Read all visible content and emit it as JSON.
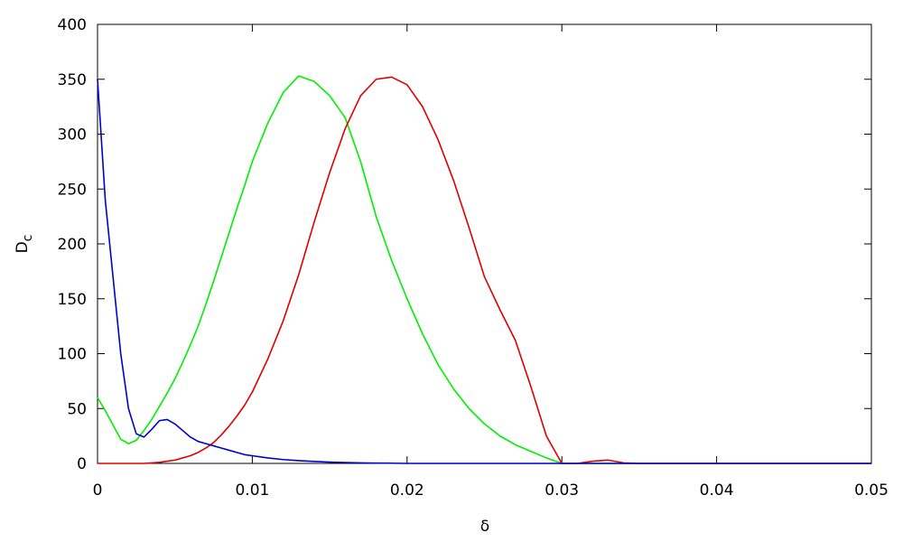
{
  "chart_data": {
    "type": "line",
    "xlabel": "δ",
    "ylabel": "D",
    "ylabel_subscript": "c",
    "x": [
      0,
      0.0005,
      0.001,
      0.0015,
      0.002,
      0.0025,
      0.003,
      0.0035,
      0.004,
      0.0045,
      0.005,
      0.0055,
      0.006,
      0.0065,
      0.007,
      0.0075,
      0.008,
      0.0085,
      0.009,
      0.0095,
      0.01,
      0.011,
      0.012,
      0.013,
      0.014,
      0.015,
      0.016,
      0.017,
      0.018,
      0.019,
      0.02,
      0.021,
      0.022,
      0.023,
      0.024,
      0.025,
      0.026,
      0.027,
      0.028,
      0.029,
      0.03,
      0.031,
      0.032,
      0.033,
      0.034,
      0.035,
      0.036,
      0.037,
      0.038,
      0.039,
      0.04,
      0.041,
      0.042,
      0.043,
      0.044,
      0.045,
      0.046,
      0.047,
      0.048,
      0.049,
      0.05
    ],
    "series": [
      {
        "color": "#00ee00",
        "values": [
          60,
          48,
          35,
          22,
          18,
          21,
          30,
          40,
          52,
          64,
          77,
          92,
          108,
          125,
          145,
          166,
          188,
          210,
          232,
          253,
          275,
          310,
          338,
          353,
          348,
          335,
          315,
          275,
          225,
          185,
          150,
          118,
          90,
          68,
          50,
          36,
          25,
          17,
          11,
          5,
          0,
          0,
          0,
          0,
          0,
          0,
          0,
          0,
          0,
          0,
          0,
          0,
          0,
          0,
          0,
          0,
          0,
          0,
          0,
          0,
          0
        ]
      },
      {
        "color": "#dd0000",
        "values": [
          0,
          0,
          0,
          0,
          0,
          0,
          0,
          0.5,
          1,
          2,
          3,
          5,
          7,
          10,
          14,
          19,
          26,
          34,
          43,
          53,
          65,
          95,
          130,
          172,
          220,
          265,
          305,
          335,
          350,
          352,
          345,
          325,
          295,
          258,
          215,
          170,
          140,
          112,
          70,
          25,
          0,
          0,
          2,
          3,
          0.5,
          0,
          0,
          0,
          0,
          0,
          0,
          0,
          0,
          0,
          0,
          0,
          0,
          0,
          0,
          0,
          0
        ]
      },
      {
        "color": "#0000cc",
        "values": [
          350,
          240,
          170,
          100,
          50,
          27,
          24,
          31,
          39,
          40,
          36,
          30,
          24,
          20,
          18,
          16,
          14,
          12,
          10,
          8,
          7,
          5,
          3.5,
          2.5,
          1.8,
          1.2,
          0.8,
          0.5,
          0.3,
          0.2,
          0,
          0,
          0,
          0,
          0,
          0,
          0,
          0,
          0,
          0,
          0,
          0,
          0,
          0,
          0,
          0,
          0,
          0,
          0,
          0,
          0,
          0,
          0,
          0,
          0,
          0,
          0,
          0,
          0,
          0,
          0
        ]
      }
    ],
    "xlim": [
      0,
      0.05
    ],
    "xticks": [
      0,
      0.01,
      0.02,
      0.03,
      0.04,
      0.05
    ],
    "ylim": [
      0,
      400
    ],
    "yticks": [
      0,
      50,
      100,
      150,
      200,
      250,
      300,
      350,
      400
    ],
    "grid": false
  }
}
